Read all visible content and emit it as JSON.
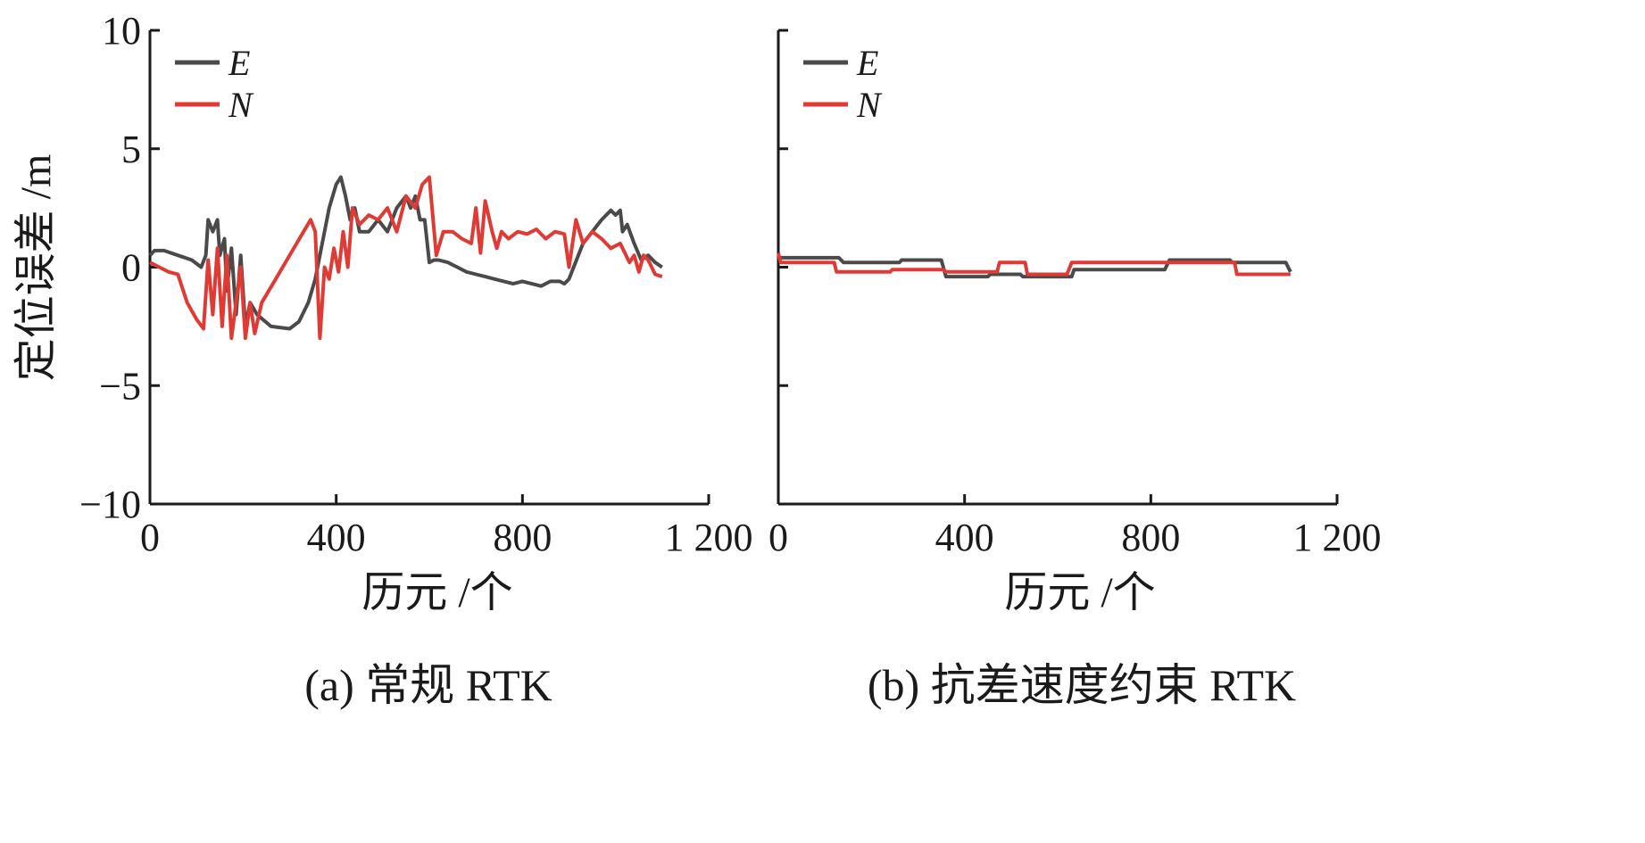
{
  "figure": {
    "ylabel": "定位误差 /m",
    "xlabel": "历元 /个"
  },
  "colors": {
    "E": "#4a4a4a",
    "N": "#e03a35",
    "axis": "#1a1a1a"
  },
  "chart_data": [
    {
      "type": "line",
      "caption": "(a) 常规 RTK",
      "xlabel": "历元 /个",
      "ylabel": "定位误差 /m",
      "xlim": [
        0,
        1200
      ],
      "ylim": [
        -10,
        10
      ],
      "xticks": [
        0,
        400,
        800,
        1200
      ],
      "xtick_labels": [
        "0",
        "400",
        "800",
        "1 200"
      ],
      "yticks": [
        10,
        5,
        0,
        -5,
        -10
      ],
      "ytick_labels": [
        "10",
        "5",
        "0",
        "−5",
        "−10"
      ],
      "legend": {
        "placement": "top-left",
        "entries": [
          "E",
          "N"
        ]
      },
      "grid": false,
      "series": [
        {
          "name": "E",
          "x": [
            0,
            10,
            30,
            60,
            90,
            110,
            120,
            125,
            135,
            145,
            150,
            160,
            165,
            175,
            185,
            195,
            205,
            215,
            230,
            260,
            300,
            320,
            340,
            355,
            370,
            385,
            400,
            410,
            420,
            430,
            440,
            450,
            470,
            490,
            510,
            530,
            550,
            560,
            570,
            580,
            590,
            600,
            610,
            620,
            640,
            660,
            680,
            700,
            720,
            740,
            760,
            780,
            800,
            820,
            840,
            860,
            880,
            890,
            900,
            910,
            930,
            950,
            970,
            990,
            1000,
            1010,
            1015,
            1025,
            1040,
            1055,
            1070,
            1085,
            1100
          ],
          "y": [
            0.5,
            0.7,
            0.7,
            0.5,
            0.3,
            0.0,
            0.5,
            2.0,
            1.5,
            2.0,
            0.5,
            1.2,
            -1.0,
            0.8,
            -2.0,
            0.5,
            -2.5,
            -1.5,
            -2.0,
            -2.5,
            -2.6,
            -2.3,
            -1.5,
            -0.5,
            1.0,
            2.5,
            3.5,
            3.8,
            3.0,
            2.0,
            2.5,
            1.5,
            1.5,
            2.0,
            1.5,
            2.5,
            3.0,
            2.5,
            3.0,
            2.0,
            2.0,
            0.2,
            0.3,
            0.3,
            0.2,
            0.0,
            -0.2,
            -0.3,
            -0.4,
            -0.5,
            -0.6,
            -0.7,
            -0.6,
            -0.7,
            -0.8,
            -0.6,
            -0.6,
            -0.7,
            -0.5,
            0.0,
            1.0,
            1.5,
            2.0,
            2.4,
            2.2,
            2.4,
            1.5,
            1.8,
            1.0,
            0.3,
            0.5,
            0.2,
            0.0
          ]
        },
        {
          "name": "N",
          "x": [
            0,
            20,
            40,
            60,
            80,
            100,
            115,
            125,
            135,
            145,
            155,
            165,
            175,
            185,
            195,
            205,
            215,
            225,
            240,
            270,
            300,
            330,
            345,
            355,
            365,
            375,
            385,
            395,
            405,
            415,
            425,
            435,
            450,
            470,
            490,
            510,
            530,
            550,
            570,
            585,
            600,
            615,
            630,
            650,
            670,
            690,
            700,
            710,
            720,
            735,
            745,
            755,
            770,
            790,
            810,
            830,
            850,
            870,
            890,
            900,
            915,
            930,
            950,
            970,
            990,
            1010,
            1030,
            1040,
            1050,
            1060,
            1070,
            1085,
            1100
          ],
          "y": [
            0.2,
            0.0,
            -0.2,
            -0.3,
            -1.5,
            -2.2,
            -2.6,
            0.3,
            -2.0,
            0.8,
            -2.5,
            0.5,
            -3.0,
            -1.5,
            0.0,
            -3.0,
            -1.5,
            -2.8,
            -1.5,
            -0.5,
            0.5,
            1.5,
            2.0,
            1.5,
            -3.0,
            0.0,
            -0.5,
            0.8,
            -0.2,
            1.5,
            0.0,
            2.5,
            1.8,
            2.2,
            2.0,
            2.5,
            1.5,
            3.0,
            2.5,
            3.5,
            3.8,
            0.5,
            1.5,
            1.5,
            1.2,
            1.0,
            2.5,
            0.6,
            2.8,
            1.5,
            0.8,
            1.5,
            1.2,
            1.5,
            1.4,
            1.6,
            1.2,
            1.5,
            1.4,
            0.0,
            2.0,
            1.0,
            1.5,
            1.2,
            0.8,
            1.0,
            0.2,
            0.5,
            -0.2,
            0.5,
            0.3,
            -0.3,
            -0.4
          ]
        }
      ]
    },
    {
      "type": "line",
      "caption": "(b) 抗差速度约束 RTK",
      "xlabel": "历元 /个",
      "xlim": [
        0,
        1200
      ],
      "ylim": [
        -10,
        10
      ],
      "xticks": [
        0,
        400,
        800,
        1200
      ],
      "xtick_labels": [
        "0",
        "400",
        "800",
        "1 200"
      ],
      "yticks": [
        10,
        5,
        0,
        -5,
        -10
      ],
      "ytick_labels": [],
      "legend": {
        "placement": "top-left",
        "entries": [
          "E",
          "N"
        ]
      },
      "grid": false,
      "series": [
        {
          "name": "E",
          "x": [
            0,
            130,
            140,
            260,
            265,
            350,
            360,
            450,
            455,
            520,
            525,
            630,
            635,
            830,
            840,
            970,
            975,
            1090,
            1100
          ],
          "y": [
            0.4,
            0.4,
            0.2,
            0.2,
            0.3,
            0.3,
            -0.4,
            -0.4,
            -0.3,
            -0.3,
            -0.4,
            -0.4,
            -0.1,
            -0.1,
            0.3,
            0.3,
            0.2,
            0.2,
            -0.2
          ]
        },
        {
          "name": "N",
          "x": [
            0,
            5,
            120,
            125,
            240,
            245,
            355,
            360,
            470,
            475,
            530,
            535,
            620,
            630,
            980,
            985,
            1100
          ],
          "y": [
            0.6,
            0.2,
            0.2,
            -0.2,
            -0.2,
            -0.1,
            -0.1,
            -0.2,
            -0.2,
            0.2,
            0.2,
            -0.3,
            -0.3,
            0.2,
            0.2,
            -0.3,
            -0.3
          ]
        }
      ]
    }
  ]
}
